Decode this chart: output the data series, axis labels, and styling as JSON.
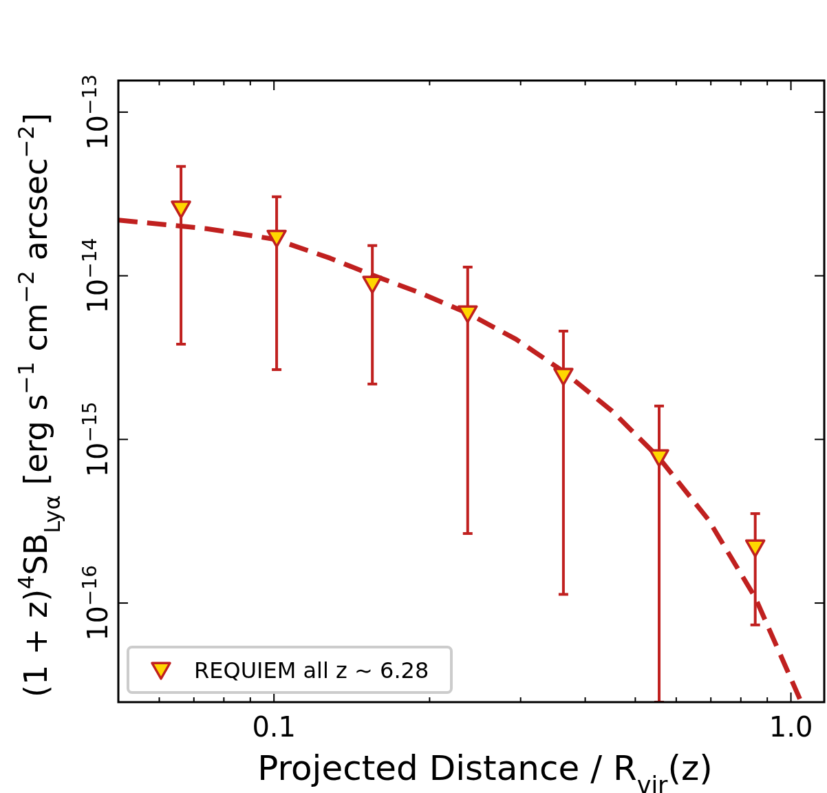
{
  "chart_data": {
    "type": "scatter",
    "xlabel": "Projected Distance / R$_{vir}$(z)",
    "ylabel": "(1 + z)$^{4}$SB$_{Lyα}$ [erg s$^{−1}$ cm$^{−2}$ arcsec$^{−2}$]",
    "log": "xy",
    "xlim": [
      0.05,
      1.16
    ],
    "ylim": [
      2.48e-17,
      1.56e-13
    ],
    "xticks": [
      {
        "value": 0.06,
        "label": null
      },
      {
        "value": 0.07,
        "label": null
      },
      {
        "value": 0.08,
        "label": null
      },
      {
        "value": 0.09,
        "label": null
      },
      {
        "value": 0.1,
        "label": "0.1"
      },
      {
        "value": 0.2,
        "label": null
      },
      {
        "value": 0.3,
        "label": null
      },
      {
        "value": 0.4,
        "label": null
      },
      {
        "value": 0.5,
        "label": null
      },
      {
        "value": 0.6,
        "label": null
      },
      {
        "value": 0.7,
        "label": null
      },
      {
        "value": 0.8,
        "label": null
      },
      {
        "value": 0.9,
        "label": null
      },
      {
        "value": 1,
        "label": "1.0"
      }
    ],
    "yticks": [
      {
        "value": 1e-13,
        "label": "10$^{−13}$"
      },
      {
        "value": 1e-14,
        "label": "10$^{−14}$"
      },
      {
        "value": 1e-15,
        "label": "10$^{−15}$"
      },
      {
        "value": 1e-16,
        "label": "10$^{−16}$"
      }
    ],
    "grid": false,
    "legend": "bottom left",
    "series": [
      {
        "type": "line",
        "color": "#c0201f",
        "line_style": "dashed",
        "marker": "none",
        "x": [
          0.05,
          0.0741,
          0.1006,
          0.1285,
          0.155,
          0.191,
          0.237,
          0.294,
          0.363,
          0.451,
          0.556,
          0.692,
          0.853,
          1.047
        ],
        "values": [
          2.19e-14,
          1.94e-14,
          1.67e-14,
          1.28e-14,
          1.01e-14,
          7.9e-15,
          5.91e-15,
          4.09e-15,
          2.6e-15,
          1.49e-15,
          7.7e-16,
          3.24e-16,
          1.08e-16,
          2.48e-17
        ]
      },
      {
        "name": "REQUIEM all z ∼ 6.28",
        "color": "#c0201f",
        "marker": "triangle",
        "x": [
          0.0661,
          0.1012,
          0.155,
          0.237,
          0.363,
          0.556,
          0.853
        ],
        "values": [
          2.58e-14,
          1.71e-14,
          8.95e-15,
          5.91e-15,
          2.45e-15,
          7.8e-16,
          2.19e-16
        ],
        "errors": [
          [
            3.82e-15,
            4.66e-14
          ],
          [
            2.67e-15,
            3.04e-14
          ],
          [
            2.18e-15,
            1.53e-14
          ],
          [
            2.66e-16,
            1.13e-14
          ],
          [
            1.13e-16,
            4.59e-15
          ],
          [
            2.48e-17,
            1.6e-15
          ],
          [
            7.35e-17,
            3.52e-16
          ]
        ]
      }
    ]
  }
}
